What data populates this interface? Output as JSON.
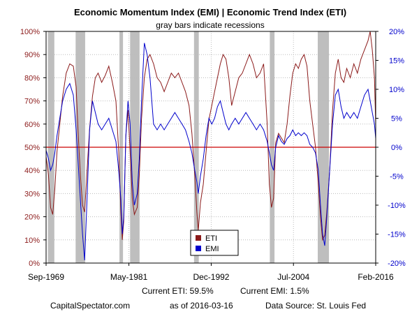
{
  "chart_data": {
    "type": "line",
    "title": "Economic Momentum Index (EMI) | Economic Trend Index (ETI)",
    "subtitle": "gray bars indicate recessions",
    "left_axis": {
      "ylim": [
        0,
        100
      ],
      "ticks": [
        0,
        10,
        20,
        30,
        40,
        50,
        60,
        70,
        80,
        90,
        100
      ],
      "tick_labels": [
        "0%",
        "10%",
        "20%",
        "30%",
        "40%",
        "50%",
        "60%",
        "70%",
        "80%",
        "90%",
        "100%"
      ],
      "color": "#8B1A1A"
    },
    "right_axis": {
      "ylim": [
        -20,
        20
      ],
      "ticks": [
        -20,
        -15,
        -10,
        -5,
        0,
        5,
        10,
        15,
        20
      ],
      "tick_labels": [
        "-20%",
        "-15%",
        "-10%",
        "-5%",
        "0%",
        "5%",
        "10%",
        "15%",
        "20%"
      ],
      "color": "#0000CC"
    },
    "xlim": [
      1969.67,
      2016.08
    ],
    "x_ticks": [
      {
        "x": 1969.67,
        "label": "Sep-1969"
      },
      {
        "x": 1981.33,
        "label": "May-1981"
      },
      {
        "x": 1992.92,
        "label": "Dec-1992"
      },
      {
        "x": 2004.5,
        "label": "Jul-2004"
      },
      {
        "x": 2016.08,
        "label": "Feb-2016"
      }
    ],
    "reference_line": {
      "axis": "left",
      "value": 50,
      "color": "#CC0000"
    },
    "recessions": [
      [
        1969.92,
        1970.83
      ],
      [
        1973.83,
        1975.17
      ],
      [
        1980.0,
        1980.5
      ],
      [
        1981.5,
        1982.83
      ],
      [
        1990.5,
        1991.17
      ],
      [
        2001.17,
        2001.83
      ],
      [
        2007.92,
        2009.5
      ]
    ],
    "legend": {
      "position": "bottom-center",
      "entries": [
        "ETI",
        "EMI"
      ]
    },
    "series": [
      {
        "name": "ETI",
        "axis": "left",
        "color": "#8B1A1A",
        "points": [
          [
            1969.67,
            46
          ],
          [
            1970.0,
            38
          ],
          [
            1970.3,
            24
          ],
          [
            1970.6,
            21
          ],
          [
            1970.9,
            32
          ],
          [
            1971.2,
            48
          ],
          [
            1971.6,
            60
          ],
          [
            1972.0,
            72
          ],
          [
            1972.5,
            82
          ],
          [
            1973.0,
            86
          ],
          [
            1973.5,
            85
          ],
          [
            1973.9,
            76
          ],
          [
            1974.2,
            55
          ],
          [
            1974.5,
            38
          ],
          [
            1974.8,
            25
          ],
          [
            1975.1,
            22
          ],
          [
            1975.4,
            38
          ],
          [
            1975.8,
            58
          ],
          [
            1976.2,
            72
          ],
          [
            1976.6,
            80
          ],
          [
            1977.0,
            82
          ],
          [
            1977.5,
            78
          ],
          [
            1978.0,
            81
          ],
          [
            1978.5,
            85
          ],
          [
            1979.0,
            78
          ],
          [
            1979.5,
            70
          ],
          [
            1979.9,
            48
          ],
          [
            1980.2,
            22
          ],
          [
            1980.4,
            10
          ],
          [
            1980.6,
            18
          ],
          [
            1980.9,
            55
          ],
          [
            1981.2,
            66
          ],
          [
            1981.5,
            48
          ],
          [
            1981.8,
            28
          ],
          [
            1982.1,
            21
          ],
          [
            1982.5,
            24
          ],
          [
            1982.8,
            38
          ],
          [
            1983.1,
            62
          ],
          [
            1983.5,
            80
          ],
          [
            1983.9,
            88
          ],
          [
            1984.3,
            90
          ],
          [
            1984.8,
            86
          ],
          [
            1985.3,
            80
          ],
          [
            1985.8,
            78
          ],
          [
            1986.3,
            74
          ],
          [
            1986.8,
            78
          ],
          [
            1987.3,
            82
          ],
          [
            1987.8,
            80
          ],
          [
            1988.3,
            82
          ],
          [
            1988.8,
            78
          ],
          [
            1989.3,
            74
          ],
          [
            1989.8,
            68
          ],
          [
            1990.2,
            56
          ],
          [
            1990.6,
            38
          ],
          [
            1990.9,
            22
          ],
          [
            1991.1,
            14
          ],
          [
            1991.4,
            26
          ],
          [
            1991.8,
            34
          ],
          [
            1992.2,
            48
          ],
          [
            1992.6,
            62
          ],
          [
            1993.0,
            68
          ],
          [
            1993.4,
            74
          ],
          [
            1993.8,
            80
          ],
          [
            1994.2,
            86
          ],
          [
            1994.6,
            90
          ],
          [
            1995.0,
            88
          ],
          [
            1995.4,
            80
          ],
          [
            1995.8,
            68
          ],
          [
            1996.3,
            74
          ],
          [
            1996.8,
            80
          ],
          [
            1997.3,
            82
          ],
          [
            1997.8,
            86
          ],
          [
            1998.3,
            90
          ],
          [
            1998.8,
            86
          ],
          [
            1999.3,
            80
          ],
          [
            1999.8,
            82
          ],
          [
            2000.3,
            86
          ],
          [
            2000.8,
            60
          ],
          [
            2001.1,
            34
          ],
          [
            2001.4,
            24
          ],
          [
            2001.7,
            28
          ],
          [
            2002.0,
            52
          ],
          [
            2002.4,
            56
          ],
          [
            2002.8,
            54
          ],
          [
            2003.2,
            52
          ],
          [
            2003.6,
            60
          ],
          [
            2004.0,
            72
          ],
          [
            2004.4,
            82
          ],
          [
            2004.8,
            86
          ],
          [
            2005.2,
            84
          ],
          [
            2005.6,
            88
          ],
          [
            2006.0,
            90
          ],
          [
            2006.4,
            85
          ],
          [
            2006.8,
            70
          ],
          [
            2007.2,
            60
          ],
          [
            2007.6,
            50
          ],
          [
            2008.0,
            34
          ],
          [
            2008.3,
            20
          ],
          [
            2008.6,
            10
          ],
          [
            2008.9,
            12
          ],
          [
            2009.2,
            22
          ],
          [
            2009.6,
            40
          ],
          [
            2010.0,
            66
          ],
          [
            2010.4,
            82
          ],
          [
            2010.8,
            88
          ],
          [
            2011.2,
            80
          ],
          [
            2011.6,
            78
          ],
          [
            2012.0,
            84
          ],
          [
            2012.5,
            80
          ],
          [
            2013.0,
            86
          ],
          [
            2013.5,
            82
          ],
          [
            2014.0,
            88
          ],
          [
            2014.5,
            92
          ],
          [
            2015.0,
            96
          ],
          [
            2015.3,
            100
          ],
          [
            2015.6,
            92
          ],
          [
            2015.9,
            80
          ],
          [
            2016.08,
            60
          ]
        ]
      },
      {
        "name": "EMI",
        "axis": "right",
        "color": "#0000CC",
        "points": [
          [
            1969.67,
            -0.5
          ],
          [
            1970.0,
            -2
          ],
          [
            1970.3,
            -4
          ],
          [
            1970.6,
            -3
          ],
          [
            1970.9,
            -1
          ],
          [
            1971.2,
            2
          ],
          [
            1971.6,
            5
          ],
          [
            1972.0,
            8
          ],
          [
            1972.5,
            10
          ],
          [
            1973.0,
            11
          ],
          [
            1973.5,
            9
          ],
          [
            1973.9,
            3
          ],
          [
            1974.2,
            -3
          ],
          [
            1974.5,
            -9
          ],
          [
            1974.8,
            -15
          ],
          [
            1975.1,
            -19.5
          ],
          [
            1975.4,
            -10
          ],
          [
            1975.8,
            3
          ],
          [
            1976.2,
            8
          ],
          [
            1976.6,
            6
          ],
          [
            1977.0,
            4
          ],
          [
            1977.5,
            3
          ],
          [
            1978.0,
            4
          ],
          [
            1978.5,
            5
          ],
          [
            1979.0,
            3
          ],
          [
            1979.5,
            1
          ],
          [
            1979.9,
            -4
          ],
          [
            1980.2,
            -9
          ],
          [
            1980.4,
            -15
          ],
          [
            1980.6,
            -12
          ],
          [
            1980.9,
            2
          ],
          [
            1981.2,
            8
          ],
          [
            1981.5,
            4
          ],
          [
            1981.8,
            -6
          ],
          [
            1982.1,
            -10
          ],
          [
            1982.5,
            -8
          ],
          [
            1982.8,
            -2
          ],
          [
            1983.1,
            8
          ],
          [
            1983.5,
            18
          ],
          [
            1983.9,
            16
          ],
          [
            1984.3,
            12
          ],
          [
            1984.8,
            4
          ],
          [
            1985.3,
            3
          ],
          [
            1985.8,
            4
          ],
          [
            1986.3,
            3
          ],
          [
            1986.8,
            4
          ],
          [
            1987.3,
            5
          ],
          [
            1987.8,
            6
          ],
          [
            1988.3,
            5
          ],
          [
            1988.8,
            4
          ],
          [
            1989.3,
            3
          ],
          [
            1989.8,
            1
          ],
          [
            1990.2,
            -1
          ],
          [
            1990.6,
            -4
          ],
          [
            1990.9,
            -6
          ],
          [
            1991.1,
            -8
          ],
          [
            1991.4,
            -5
          ],
          [
            1991.8,
            -2
          ],
          [
            1992.2,
            2
          ],
          [
            1992.6,
            5
          ],
          [
            1993.0,
            4
          ],
          [
            1993.4,
            5
          ],
          [
            1993.8,
            7
          ],
          [
            1994.2,
            8
          ],
          [
            1994.6,
            6
          ],
          [
            1995.0,
            4
          ],
          [
            1995.4,
            3
          ],
          [
            1995.8,
            4
          ],
          [
            1996.3,
            5
          ],
          [
            1996.8,
            4
          ],
          [
            1997.3,
            5
          ],
          [
            1997.8,
            6
          ],
          [
            1998.3,
            5
          ],
          [
            1998.8,
            4
          ],
          [
            1999.3,
            3
          ],
          [
            1999.8,
            4
          ],
          [
            2000.3,
            3
          ],
          [
            2000.8,
            1
          ],
          [
            2001.1,
            -1
          ],
          [
            2001.4,
            -3
          ],
          [
            2001.7,
            -4
          ],
          [
            2002.0,
            0
          ],
          [
            2002.4,
            2
          ],
          [
            2002.8,
            1
          ],
          [
            2003.2,
            0.5
          ],
          [
            2003.6,
            1.5
          ],
          [
            2004.0,
            2
          ],
          [
            2004.4,
            3
          ],
          [
            2004.8,
            2
          ],
          [
            2005.2,
            2.5
          ],
          [
            2005.6,
            2
          ],
          [
            2006.0,
            2.5
          ],
          [
            2006.4,
            2
          ],
          [
            2006.8,
            0.5
          ],
          [
            2007.2,
            0
          ],
          [
            2007.6,
            -1
          ],
          [
            2008.0,
            -4
          ],
          [
            2008.3,
            -10
          ],
          [
            2008.6,
            -15
          ],
          [
            2008.9,
            -17
          ],
          [
            2009.2,
            -12
          ],
          [
            2009.6,
            -4
          ],
          [
            2010.0,
            4
          ],
          [
            2010.4,
            9
          ],
          [
            2010.8,
            10
          ],
          [
            2011.2,
            7
          ],
          [
            2011.6,
            5
          ],
          [
            2012.0,
            6
          ],
          [
            2012.5,
            5
          ],
          [
            2013.0,
            6
          ],
          [
            2013.5,
            5
          ],
          [
            2014.0,
            7
          ],
          [
            2014.5,
            9
          ],
          [
            2015.0,
            10
          ],
          [
            2015.3,
            8
          ],
          [
            2015.6,
            6
          ],
          [
            2015.9,
            4
          ],
          [
            2016.08,
            1.5
          ]
        ]
      }
    ]
  },
  "footer": {
    "current_eti": "Current ETI:  59.5%",
    "current_emi": "Current EMI:  1.5%",
    "source_site": "CapitalSpectator.com",
    "as_of": "as of 2016-03-16",
    "data_source": "Data Source:  St. Louis Fed"
  },
  "colors": {
    "recession": "#BEBEBE",
    "grid": "#BBBBBB"
  }
}
